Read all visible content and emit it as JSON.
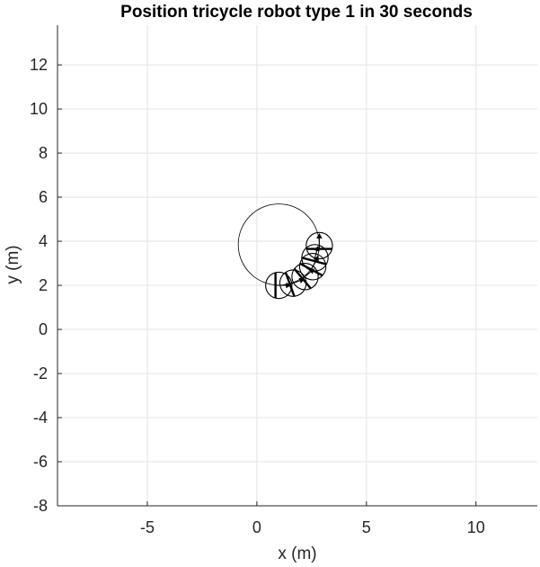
{
  "chart_data": {
    "type": "scatter",
    "title": "Position tricycle robot type 1 in 30 seconds",
    "xlabel": "x (m)",
    "ylabel": "y (m)",
    "xlim": [
      -9.1,
      12.8
    ],
    "ylim": [
      -8,
      13.8
    ],
    "xticks": [
      -5,
      0,
      5,
      10
    ],
    "yticks": [
      -8,
      -6,
      -4,
      -2,
      0,
      2,
      4,
      6,
      8,
      10,
      12
    ],
    "grid": true,
    "trajectory": {
      "shape": "circle",
      "center": [
        1.0,
        3.85
      ],
      "radius": 1.85
    },
    "robot_poses": [
      {
        "x": 1.0,
        "y": 2.0,
        "heading_deg": 0
      },
      {
        "x": 1.65,
        "y": 2.1,
        "heading_deg": 20
      },
      {
        "x": 2.2,
        "y": 2.4,
        "heading_deg": 40
      },
      {
        "x": 2.55,
        "y": 2.85,
        "heading_deg": 62
      },
      {
        "x": 2.65,
        "y": 3.25,
        "heading_deg": 75
      },
      {
        "x": 2.85,
        "y": 3.8,
        "heading_deg": 90
      }
    ],
    "robot_body_radius": 0.6
  }
}
